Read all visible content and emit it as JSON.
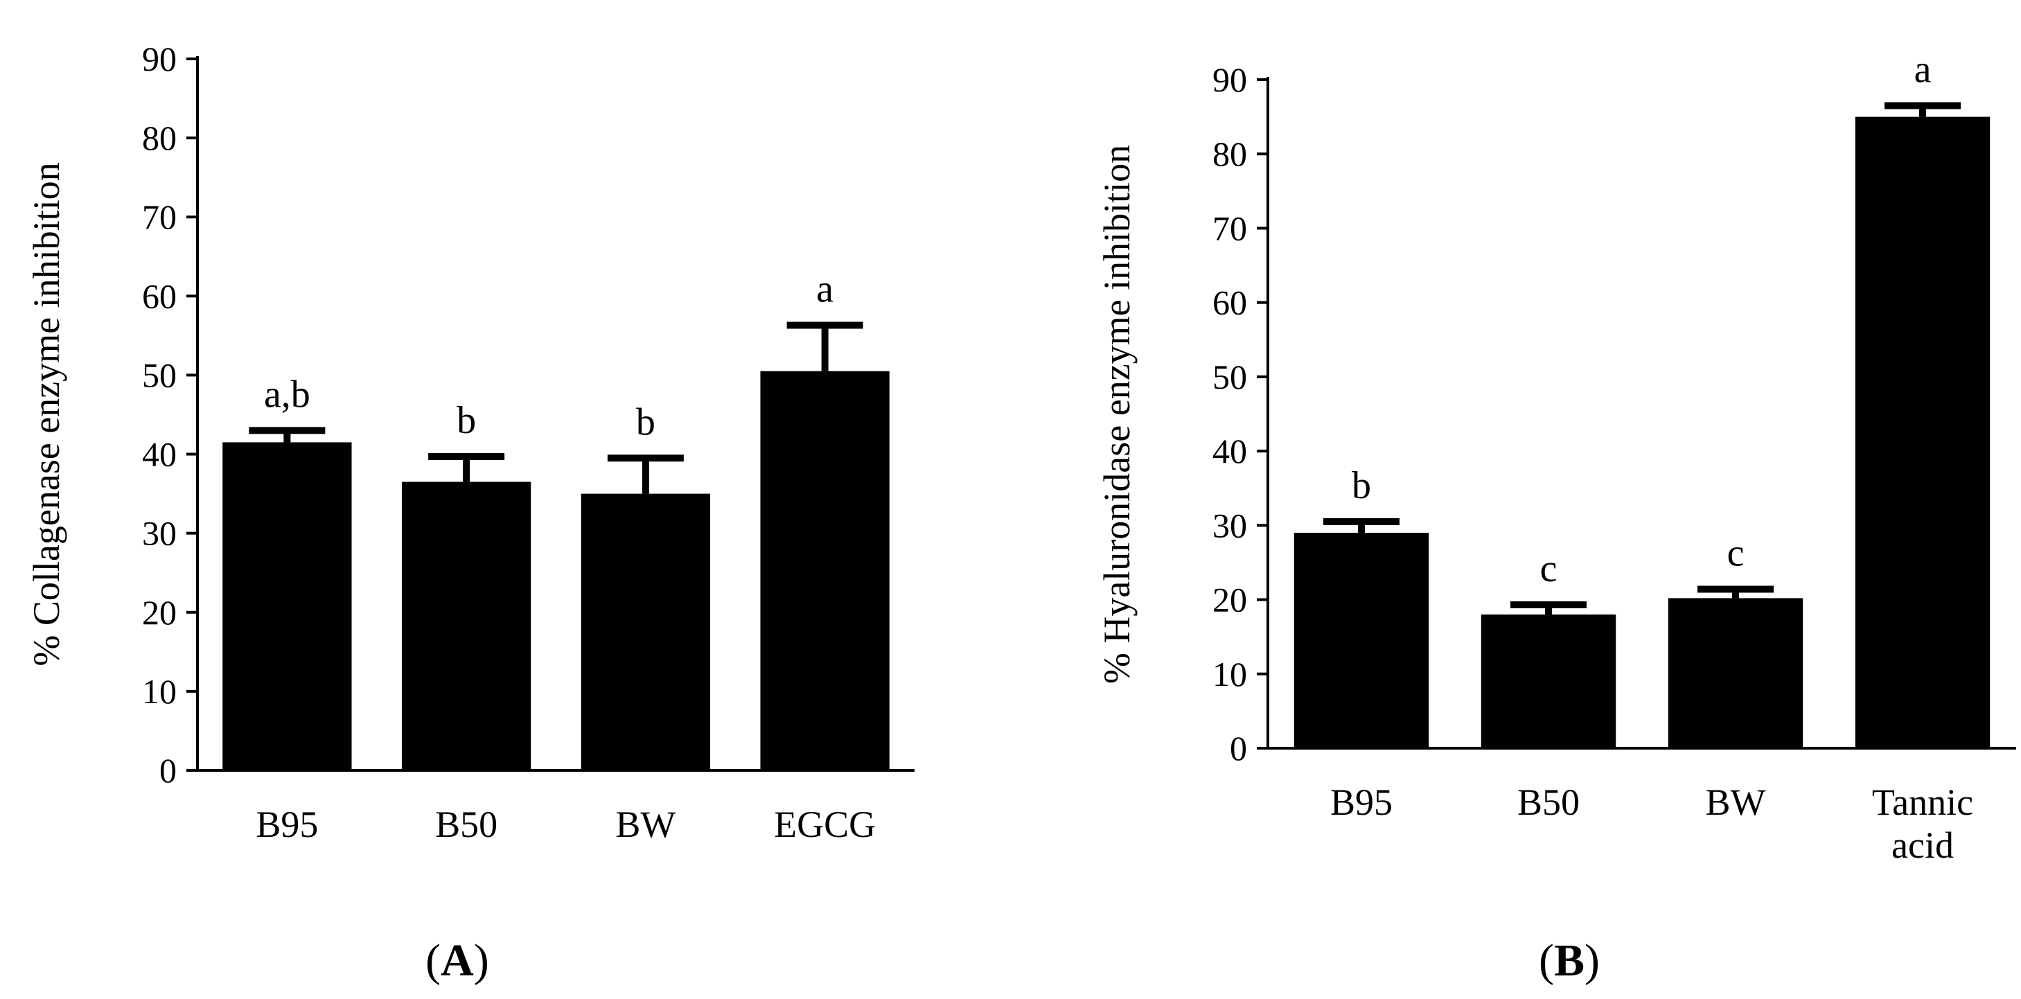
{
  "chart_data": [
    {
      "type": "bar",
      "panel_label": "A",
      "title": "",
      "xlabel": "",
      "ylabel": "% Collagenase enzyme inhibition",
      "ylim": [
        0,
        90
      ],
      "yticks": [
        0,
        10,
        20,
        30,
        40,
        50,
        60,
        70,
        80,
        90
      ],
      "categories": [
        "B95",
        "B50",
        "BW",
        "EGCG"
      ],
      "values": [
        41.5,
        36.5,
        35,
        50.5
      ],
      "errors": [
        1.5,
        3.2,
        4.5,
        5.8
      ],
      "significance": [
        "a,b",
        "b",
        "b",
        "a"
      ],
      "color": "#000000",
      "grid": false
    },
    {
      "type": "bar",
      "panel_label": "B",
      "title": "",
      "xlabel": "",
      "ylabel": "% Hyaluronidase enzyme inhibition",
      "ylim": [
        0,
        90
      ],
      "yticks": [
        0,
        10,
        20,
        30,
        40,
        50,
        60,
        70,
        80,
        90
      ],
      "categories": [
        "B95",
        "B50",
        "BW",
        "Tannic acid"
      ],
      "values": [
        29,
        18,
        20.2,
        85
      ],
      "errors": [
        1.5,
        1.3,
        1.2,
        1.5
      ],
      "significance": [
        "b",
        "c",
        "c",
        "a"
      ],
      "color": "#000000",
      "grid": false
    }
  ]
}
